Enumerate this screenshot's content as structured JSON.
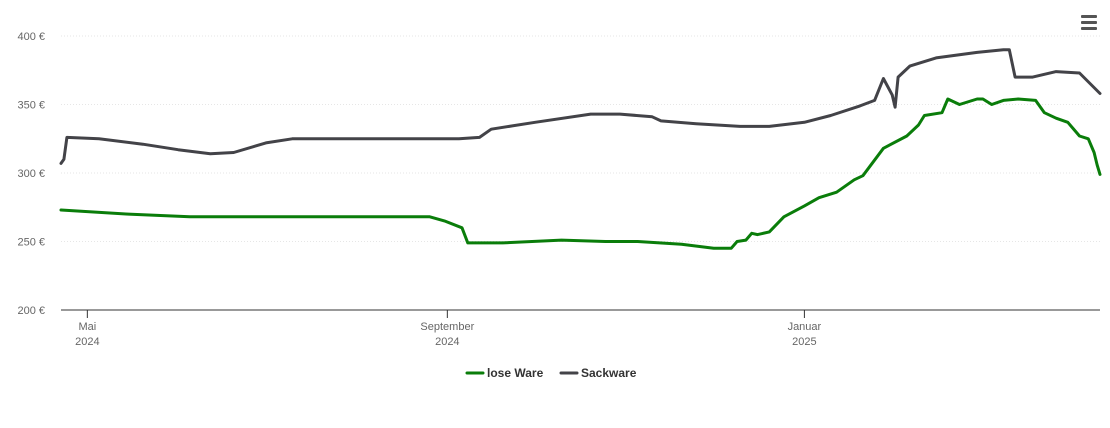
{
  "chart_data": {
    "type": "line",
    "title": "",
    "xlabel": "",
    "ylabel": "",
    "ylim": [
      200,
      400
    ],
    "y_ticks": [
      200,
      250,
      300,
      350,
      400
    ],
    "y_tick_suffix": " €",
    "xlim": [
      "2024-04-22",
      "2025-04-12"
    ],
    "x_ticks": [
      {
        "date": "2024-05-01",
        "month": "Mai",
        "year": "2024"
      },
      {
        "date": "2024-09-01",
        "month": "September",
        "year": "2024"
      },
      {
        "date": "2025-01-01",
        "month": "Januar",
        "year": "2025"
      }
    ],
    "grid": true,
    "legend_position": "bottom-center",
    "series": [
      {
        "name": "lose Ware",
        "color": "#0a7d0a",
        "points": [
          [
            "2024-04-22",
            273
          ],
          [
            "2024-05-15",
            270
          ],
          [
            "2024-06-05",
            268
          ],
          [
            "2024-07-01",
            268
          ],
          [
            "2024-08-01",
            268
          ],
          [
            "2024-08-26",
            268
          ],
          [
            "2024-08-31",
            265
          ],
          [
            "2024-09-06",
            260
          ],
          [
            "2024-09-08",
            249
          ],
          [
            "2024-09-20",
            249
          ],
          [
            "2024-10-10",
            251
          ],
          [
            "2024-10-25",
            250
          ],
          [
            "2024-11-05",
            250
          ],
          [
            "2024-11-20",
            248
          ],
          [
            "2024-12-01",
            245
          ],
          [
            "2024-12-07",
            245
          ],
          [
            "2024-12-09",
            250
          ],
          [
            "2024-12-12",
            251
          ],
          [
            "2024-12-14",
            256
          ],
          [
            "2024-12-16",
            255
          ],
          [
            "2024-12-20",
            257
          ],
          [
            "2024-12-25",
            268
          ],
          [
            "2025-01-01",
            276
          ],
          [
            "2025-01-06",
            282
          ],
          [
            "2025-01-12",
            286
          ],
          [
            "2025-01-18",
            295
          ],
          [
            "2025-01-21",
            298
          ],
          [
            "2025-01-28",
            318
          ],
          [
            "2025-02-05",
            327
          ],
          [
            "2025-02-09",
            335
          ],
          [
            "2025-02-11",
            342
          ],
          [
            "2025-02-17",
            344
          ],
          [
            "2025-02-19",
            354
          ],
          [
            "2025-02-23",
            350
          ],
          [
            "2025-03-01",
            354
          ],
          [
            "2025-03-03",
            354
          ],
          [
            "2025-03-06",
            350
          ],
          [
            "2025-03-10",
            353
          ],
          [
            "2025-03-15",
            354
          ],
          [
            "2025-03-21",
            353
          ],
          [
            "2025-03-24",
            344
          ],
          [
            "2025-03-28",
            340
          ],
          [
            "2025-04-01",
            337
          ],
          [
            "2025-04-05",
            327
          ],
          [
            "2025-04-08",
            325
          ],
          [
            "2025-04-10",
            315
          ],
          [
            "2025-04-11",
            306
          ],
          [
            "2025-04-12",
            299
          ]
        ]
      },
      {
        "name": "Sackware",
        "color": "#434348",
        "points": [
          [
            "2024-04-22",
            307
          ],
          [
            "2024-04-23",
            310
          ],
          [
            "2024-04-24",
            326
          ],
          [
            "2024-05-05",
            325
          ],
          [
            "2024-05-20",
            321
          ],
          [
            "2024-06-01",
            317
          ],
          [
            "2024-06-12",
            314
          ],
          [
            "2024-06-20",
            315
          ],
          [
            "2024-07-01",
            322
          ],
          [
            "2024-07-10",
            325
          ],
          [
            "2024-08-01",
            325
          ],
          [
            "2024-08-20",
            325
          ],
          [
            "2024-09-05",
            325
          ],
          [
            "2024-09-12",
            326
          ],
          [
            "2024-09-16",
            332
          ],
          [
            "2024-10-01",
            337
          ],
          [
            "2024-10-20",
            343
          ],
          [
            "2024-10-30",
            343
          ],
          [
            "2024-11-10",
            341
          ],
          [
            "2024-11-13",
            338
          ],
          [
            "2024-11-25",
            336
          ],
          [
            "2024-12-10",
            334
          ],
          [
            "2024-12-20",
            334
          ],
          [
            "2025-01-01",
            337
          ],
          [
            "2025-01-10",
            342
          ],
          [
            "2025-01-20",
            349
          ],
          [
            "2025-01-25",
            353
          ],
          [
            "2025-01-28",
            369
          ],
          [
            "2025-01-31",
            357
          ],
          [
            "2025-02-01",
            348
          ],
          [
            "2025-02-02",
            370
          ],
          [
            "2025-02-06",
            378
          ],
          [
            "2025-02-15",
            384
          ],
          [
            "2025-03-01",
            388
          ],
          [
            "2025-03-10",
            390
          ],
          [
            "2025-03-12",
            390
          ],
          [
            "2025-03-14",
            370
          ],
          [
            "2025-03-20",
            370
          ],
          [
            "2025-03-28",
            374
          ],
          [
            "2025-04-05",
            373
          ],
          [
            "2025-04-12",
            358
          ]
        ]
      }
    ]
  },
  "toolbar": {
    "menu_icon": "hamburger-menu-icon"
  }
}
